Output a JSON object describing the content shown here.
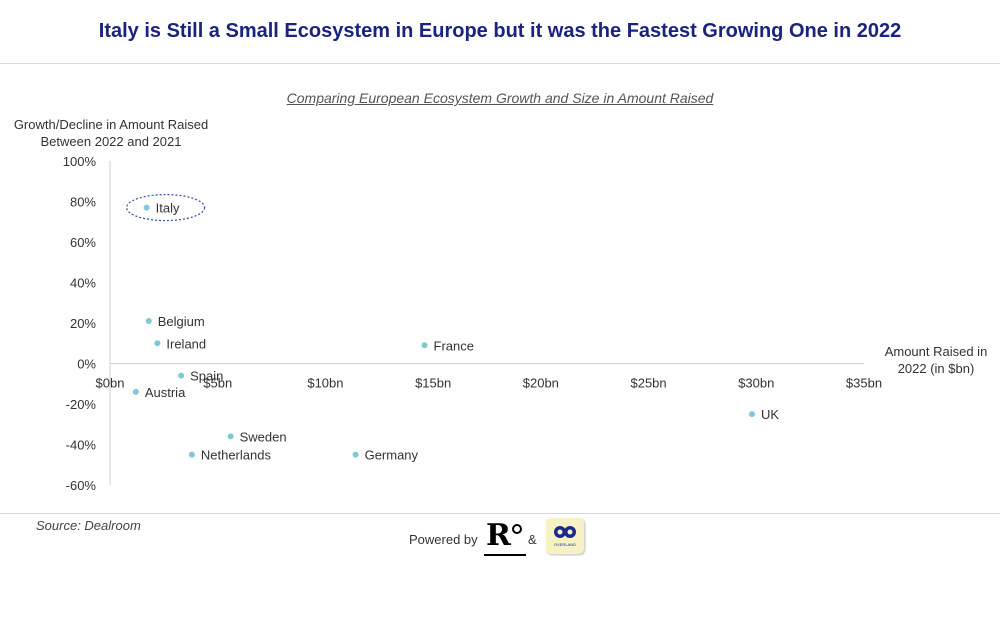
{
  "colors": {
    "title": "#1a237e",
    "point": "#7ec8d8",
    "axis": "#d0d0d0",
    "highlight": "#3949ab"
  },
  "header": {
    "title": "Italy is Still a Small Ecosystem in Europe but it was the Fastest Growing One in 2022"
  },
  "chart_data": {
    "type": "scatter",
    "title": "Comparing European Ecosystem Growth and Size in Amount Raised",
    "xlabel": "Amount Raised in 2022 (in $bn)",
    "ylabel": "Growth/Decline in Amount Raised Between 2022 and 2021",
    "xlim": [
      0,
      35
    ],
    "ylim": [
      -60,
      100
    ],
    "x_ticks": [
      0,
      5,
      10,
      15,
      20,
      25,
      30,
      35
    ],
    "x_tick_labels": [
      "$0bn",
      "$5bn",
      "$10bn",
      "$15bn",
      "$20bn",
      "$25bn",
      "$30bn",
      "$35bn"
    ],
    "y_ticks": [
      100,
      80,
      60,
      40,
      20,
      0,
      -20,
      -40,
      -60
    ],
    "y_tick_labels": [
      "100%",
      "80%",
      "60%",
      "40%",
      "20%",
      "0%",
      "-20%",
      "-40%",
      "-60%"
    ],
    "grid": false,
    "legend": "none",
    "highlight": "Italy",
    "points": [
      {
        "label": "Italy",
        "x": 1.7,
        "y": 77
      },
      {
        "label": "Belgium",
        "x": 1.8,
        "y": 21
      },
      {
        "label": "Ireland",
        "x": 2.2,
        "y": 10
      },
      {
        "label": "Spain",
        "x": 3.3,
        "y": -6
      },
      {
        "label": "Austria",
        "x": 1.2,
        "y": -14
      },
      {
        "label": "France",
        "x": 14.6,
        "y": 9
      },
      {
        "label": "UK",
        "x": 29.8,
        "y": -25
      },
      {
        "label": "Sweden",
        "x": 5.6,
        "y": -36
      },
      {
        "label": "Netherlands",
        "x": 3.8,
        "y": -45
      },
      {
        "label": "Germany",
        "x": 11.4,
        "y": -45
      }
    ]
  },
  "footer": {
    "source": "Source: Dealroom",
    "powered_by": "Powered by",
    "amp": "&",
    "logo_r_text": "R",
    "logo_o_text": "OVERLAND"
  }
}
